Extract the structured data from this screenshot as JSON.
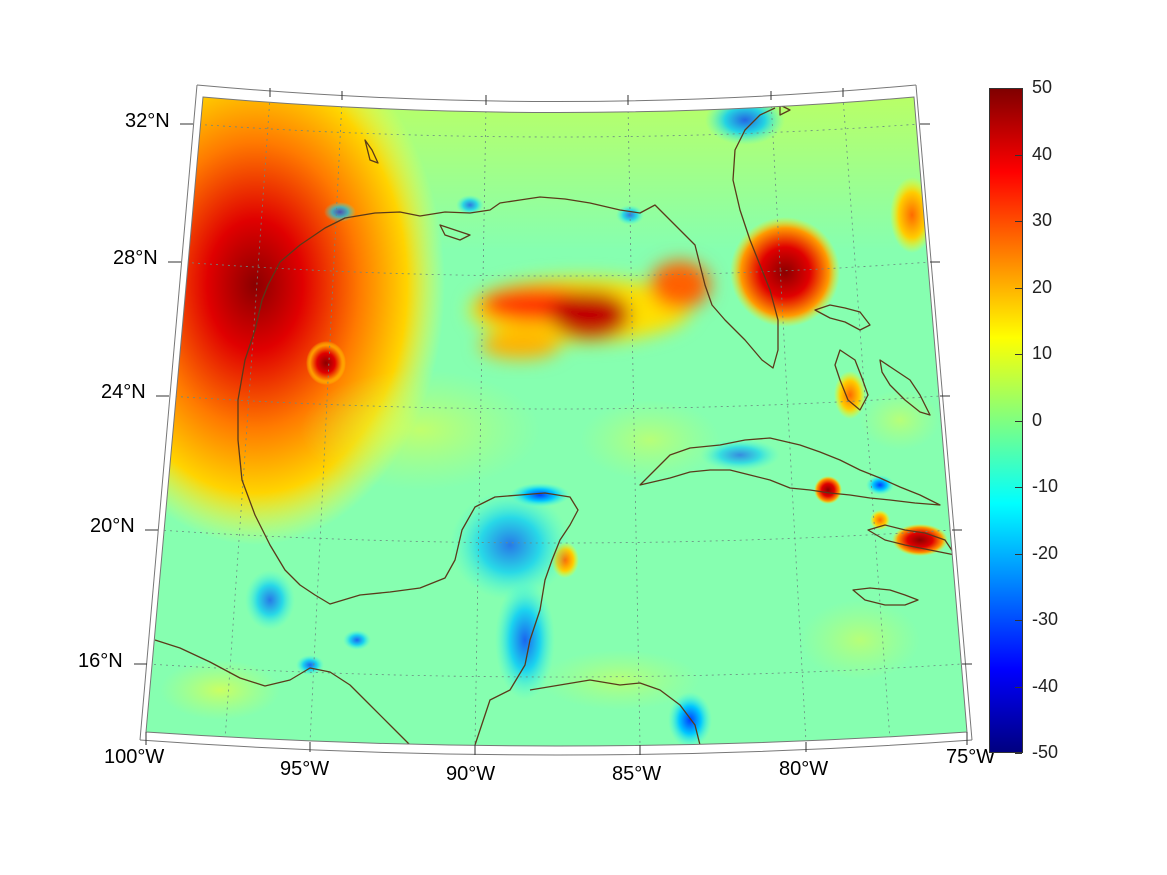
{
  "map": {
    "projection": "conic",
    "lat_labels": [
      "32°N",
      "28°N",
      "24°N",
      "20°N",
      "16°N"
    ],
    "lon_labels": [
      "100°W",
      "95°W",
      "90°W",
      "85°W",
      "80°W",
      "75°W"
    ],
    "background_color": "#7fffbf",
    "coastline_color": "#5a3a1a",
    "grid_style": "dotted"
  },
  "colorbar": {
    "colormap": "jet",
    "min": -50,
    "max": 50,
    "tick_labels": [
      "50",
      "40",
      "30",
      "20",
      "10",
      "0",
      "-10",
      "-20",
      "-30",
      "-40",
      "-50"
    ]
  }
}
